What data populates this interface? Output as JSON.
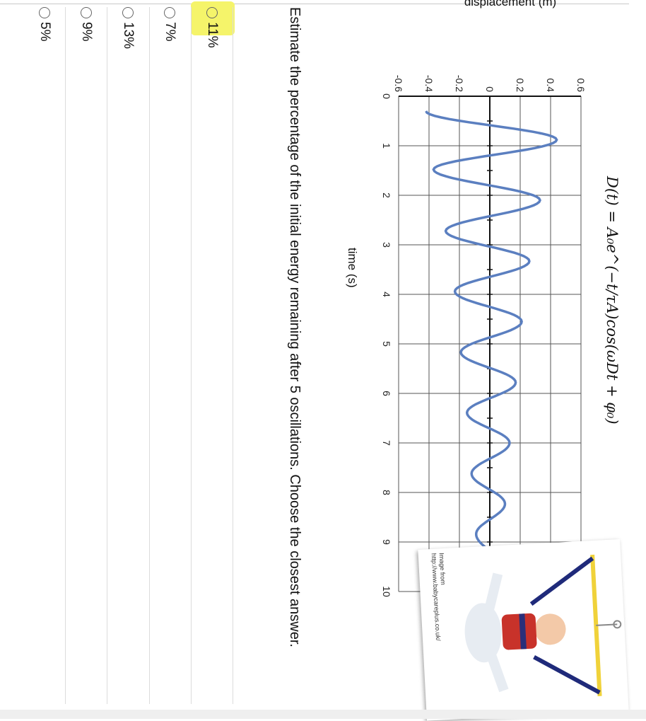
{
  "question": {
    "formula": "D(t) = A₀e^(−t/τA)cos(ωDt + φ₀)",
    "text": "Estimate the percentage of the initial energy remaining after 5 oscillations. Choose the closest answer."
  },
  "options": [
    "11%",
    "7%",
    "13%",
    "9%",
    "5%"
  ],
  "highlighted_option": "11%",
  "image_credit": {
    "line1": "Image from",
    "line2": "http://www.babycareplus.co.uk/"
  },
  "colors": {
    "curve": "#5b7fc0",
    "highlight": "#f5f46a"
  },
  "chart_data": {
    "type": "line",
    "xlabel": "time (s)",
    "ylabel": "displacement (m)",
    "xlim": [
      0,
      10
    ],
    "ylim": [
      -0.6,
      0.6
    ],
    "x_ticks": [
      "0",
      "1",
      "2",
      "3",
      "4",
      "5",
      "6",
      "7",
      "8",
      "9",
      "10"
    ],
    "y_ticks": [
      "-0.6",
      "-0.4",
      "-0.2",
      "0",
      "0.2",
      "0.4",
      "0.6"
    ],
    "grid": true,
    "series": [
      {
        "x": [
          0.3,
          0.88,
          1.48,
          2.1,
          2.72,
          3.33,
          3.94,
          4.55,
          5.17,
          5.78,
          6.39,
          7.0,
          7.62,
          8.23,
          8.84,
          9.45
        ],
        "y": [
          -0.42,
          0.44,
          -0.37,
          0.33,
          -0.29,
          0.26,
          -0.23,
          0.21,
          -0.19,
          0.17,
          -0.15,
          0.13,
          -0.12,
          0.1,
          -0.09,
          0.06
        ]
      }
    ]
  }
}
